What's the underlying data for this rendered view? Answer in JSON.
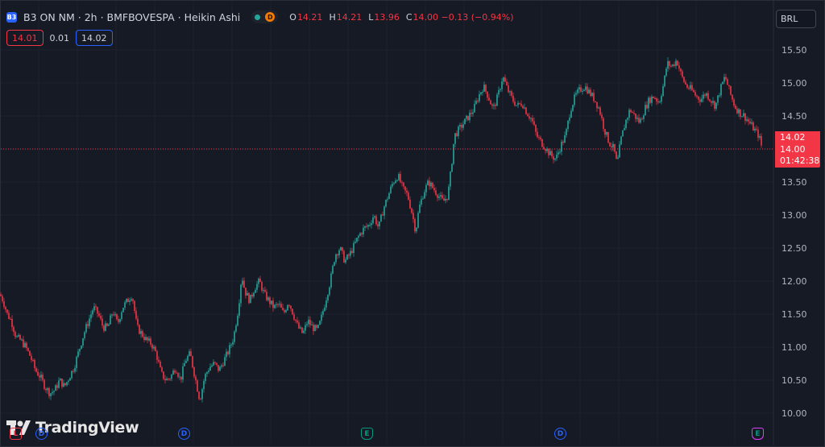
{
  "header": {
    "symbol_badge": "B3",
    "title": "B3 ON NM · 2h · BMFBOVESPA · Heikin Ashi",
    "d_badge": "D",
    "ohlc": [
      {
        "k": "O",
        "v": "14.21"
      },
      {
        "k": "H",
        "v": "14.21"
      },
      {
        "k": "L",
        "v": "13.96"
      },
      {
        "k": "C",
        "v": "14.00 −0.13 (−0.94%)"
      }
    ],
    "sell_price": "14.01",
    "spread": "0.01",
    "buy_price": "14.02"
  },
  "currency_button": "BRL",
  "logo_text": "TradingView",
  "price_tags": {
    "ask": "14.02",
    "last": "14.00",
    "countdown": "01:42:38"
  },
  "events": [
    {
      "type": "split",
      "label": "L"
    },
    {
      "type": "dividend",
      "label": "D"
    },
    {
      "type": "dividend",
      "label": "D"
    },
    {
      "type": "earnings",
      "label": "E"
    },
    {
      "type": "dividend",
      "label": "D"
    },
    {
      "type": "earnings",
      "label": "E"
    }
  ],
  "colors": {
    "up": "#26a69a",
    "down": "#f23645",
    "background": "#161a25",
    "grid": "#1f232e"
  },
  "chart_data": {
    "type": "candlestick",
    "yticks": [
      "15.50",
      "15.00",
      "14.50",
      "14.00",
      "13.50",
      "13.00",
      "12.50",
      "12.00",
      "11.50",
      "11.00",
      "10.50",
      "10.00"
    ],
    "ylim": [
      9.97,
      15.65
    ],
    "grid": true,
    "last_price": 14.0,
    "series_path": [
      [
        0,
        11.8
      ],
      [
        4,
        11.7
      ],
      [
        9,
        11.5
      ],
      [
        14,
        11.4
      ],
      [
        20,
        11.15
      ],
      [
        26,
        11.1
      ],
      [
        32,
        11.0
      ],
      [
        38,
        10.85
      ],
      [
        44,
        10.65
      ],
      [
        50,
        10.55
      ],
      [
        56,
        10.4
      ],
      [
        62,
        10.3
      ],
      [
        68,
        10.35
      ],
      [
        74,
        10.5
      ],
      [
        80,
        10.4
      ],
      [
        86,
        10.55
      ],
      [
        92,
        10.7
      ],
      [
        98,
        10.95
      ],
      [
        104,
        11.2
      ],
      [
        110,
        11.4
      ],
      [
        116,
        11.6
      ],
      [
        122,
        11.5
      ],
      [
        128,
        11.3
      ],
      [
        134,
        11.3
      ],
      [
        140,
        11.55
      ],
      [
        146,
        11.35
      ],
      [
        152,
        11.6
      ],
      [
        158,
        11.7
      ],
      [
        164,
        11.8
      ],
      [
        170,
        11.3
      ],
      [
        176,
        11.2
      ],
      [
        182,
        11.1
      ],
      [
        188,
        11.05
      ],
      [
        194,
        10.9
      ],
      [
        200,
        10.6
      ],
      [
        206,
        10.5
      ],
      [
        212,
        10.55
      ],
      [
        218,
        10.7
      ],
      [
        224,
        10.5
      ],
      [
        230,
        10.8
      ],
      [
        236,
        10.9
      ],
      [
        242,
        10.55
      ],
      [
        248,
        10.2
      ],
      [
        254,
        10.55
      ],
      [
        260,
        10.7
      ],
      [
        266,
        10.75
      ],
      [
        272,
        10.65
      ],
      [
        278,
        10.8
      ],
      [
        284,
        10.95
      ],
      [
        290,
        11.15
      ],
      [
        296,
        11.6
      ],
      [
        300,
        12.1
      ],
      [
        304,
        11.85
      ],
      [
        310,
        11.7
      ],
      [
        316,
        11.9
      ],
      [
        322,
        12.0
      ],
      [
        328,
        11.8
      ],
      [
        334,
        11.7
      ],
      [
        340,
        11.6
      ],
      [
        346,
        11.65
      ],
      [
        352,
        11.5
      ],
      [
        358,
        11.7
      ],
      [
        364,
        11.5
      ],
      [
        370,
        11.3
      ],
      [
        376,
        11.2
      ],
      [
        382,
        11.4
      ],
      [
        388,
        11.3
      ],
      [
        394,
        11.25
      ],
      [
        398,
        11.4
      ],
      [
        404,
        11.7
      ],
      [
        410,
        12.0
      ],
      [
        416,
        12.4
      ],
      [
        422,
        12.5
      ],
      [
        428,
        12.3
      ],
      [
        434,
        12.4
      ],
      [
        440,
        12.55
      ],
      [
        446,
        12.7
      ],
      [
        452,
        12.8
      ],
      [
        458,
        12.85
      ],
      [
        464,
        13.0
      ],
      [
        470,
        12.8
      ],
      [
        476,
        13.1
      ],
      [
        482,
        13.3
      ],
      [
        488,
        13.5
      ],
      [
        494,
        13.6
      ],
      [
        500,
        13.4
      ],
      [
        506,
        13.3
      ],
      [
        512,
        13.0
      ],
      [
        516,
        12.75
      ],
      [
        520,
        13.1
      ],
      [
        526,
        13.35
      ],
      [
        532,
        13.5
      ],
      [
        538,
        13.4
      ],
      [
        544,
        13.3
      ],
      [
        550,
        13.2
      ],
      [
        556,
        13.3
      ],
      [
        560,
        13.7
      ],
      [
        564,
        14.2
      ],
      [
        570,
        14.3
      ],
      [
        576,
        14.4
      ],
      [
        582,
        14.5
      ],
      [
        588,
        14.6
      ],
      [
        594,
        14.8
      ],
      [
        600,
        14.95
      ],
      [
        606,
        14.8
      ],
      [
        612,
        14.6
      ],
      [
        618,
        14.8
      ],
      [
        624,
        15.1
      ],
      [
        630,
        14.9
      ],
      [
        636,
        14.75
      ],
      [
        642,
        14.65
      ],
      [
        648,
        14.7
      ],
      [
        654,
        14.55
      ],
      [
        660,
        14.45
      ],
      [
        666,
        14.2
      ],
      [
        672,
        14.1
      ],
      [
        678,
        14.0
      ],
      [
        684,
        13.9
      ],
      [
        690,
        13.85
      ],
      [
        696,
        14.05
      ],
      [
        702,
        14.2
      ],
      [
        708,
        14.6
      ],
      [
        714,
        14.8
      ],
      [
        720,
        14.9
      ],
      [
        726,
        14.95
      ],
      [
        732,
        14.85
      ],
      [
        738,
        14.75
      ],
      [
        744,
        14.6
      ],
      [
        750,
        14.3
      ],
      [
        756,
        14.1
      ],
      [
        762,
        14.0
      ],
      [
        766,
        13.75
      ],
      [
        770,
        14.1
      ],
      [
        776,
        14.4
      ],
      [
        782,
        14.6
      ],
      [
        788,
        14.5
      ],
      [
        794,
        14.4
      ],
      [
        800,
        14.6
      ],
      [
        806,
        14.75
      ],
      [
        812,
        14.8
      ],
      [
        818,
        14.7
      ],
      [
        824,
        15.0
      ],
      [
        828,
        15.3
      ],
      [
        834,
        15.25
      ],
      [
        840,
        15.35
      ],
      [
        846,
        15.1
      ],
      [
        852,
        14.95
      ],
      [
        858,
        14.9
      ],
      [
        864,
        14.8
      ],
      [
        870,
        14.75
      ],
      [
        876,
        14.85
      ],
      [
        882,
        14.75
      ],
      [
        888,
        14.65
      ],
      [
        894,
        14.9
      ],
      [
        900,
        15.1
      ],
      [
        906,
        14.85
      ],
      [
        912,
        14.65
      ],
      [
        918,
        14.55
      ],
      [
        924,
        14.5
      ],
      [
        930,
        14.4
      ],
      [
        936,
        14.3
      ],
      [
        942,
        14.2
      ],
      [
        946,
        14.0
      ]
    ]
  }
}
